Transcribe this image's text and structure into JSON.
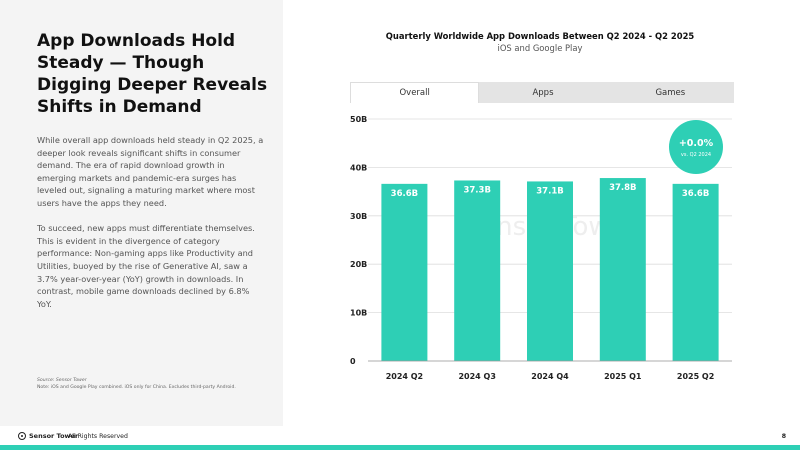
{
  "slide": {
    "headline": "App Downloads Hold Steady — Though Digging Deeper Reveals Shifts in Demand",
    "paragraph1": "While overall app downloads held steady in Q2 2025, a deeper look reveals significant shifts in consumer demand. The era of rapid download growth in emerging markets and pandemic-era surges has leveled out, signaling a maturing market where most users have the apps they need.",
    "paragraph2": "To succeed, new apps must differentiate themselves. This is evident in the divergence of category performance: Non-gaming apps like Productivity and Utilities, buoyed by the rise of Generative AI, saw a 3.7% year-over-year (YoY) growth in downloads. In contrast, mobile game downloads declined by 6.8% YoY.",
    "source": "Source: Sensor Tower",
    "note": "Note: iOS and Google Play combined. iOS only for China. Excludes third-party Android."
  },
  "tabs": [
    "Overall",
    "Apps",
    "Games"
  ],
  "active_tab": "Overall",
  "footer": {
    "logo_text": "Sensor Tower",
    "rights": "All Rights Reserved",
    "page": "8"
  },
  "colors": {
    "bar": "#2ecfb5",
    "badge": "#2ecfb5",
    "gridline": "#dddddd",
    "watermark": "#eeeeee",
    "accent_footer": "#2ecfb5"
  },
  "chart_data": {
    "type": "bar",
    "title": "Quarterly Worldwide App Downloads Between Q2 2024 - Q2 2025",
    "subtitle": "iOS and Google Play",
    "categories": [
      "2024 Q2",
      "2024 Q3",
      "2024 Q4",
      "2025 Q1",
      "2025 Q2"
    ],
    "values": [
      36.6,
      37.3,
      37.1,
      37.8,
      36.6
    ],
    "data_labels": [
      "36.6B",
      "37.3B",
      "37.1B",
      "37.8B",
      "36.6B"
    ],
    "y_ticks": [
      "0",
      "10B",
      "20B",
      "30B",
      "40B",
      "50B"
    ],
    "ylim": [
      0,
      50
    ],
    "grid": true,
    "watermark": "Sensor Tower",
    "badge": {
      "value": "+0.0%",
      "caption": "vs. Q2 2024"
    }
  }
}
